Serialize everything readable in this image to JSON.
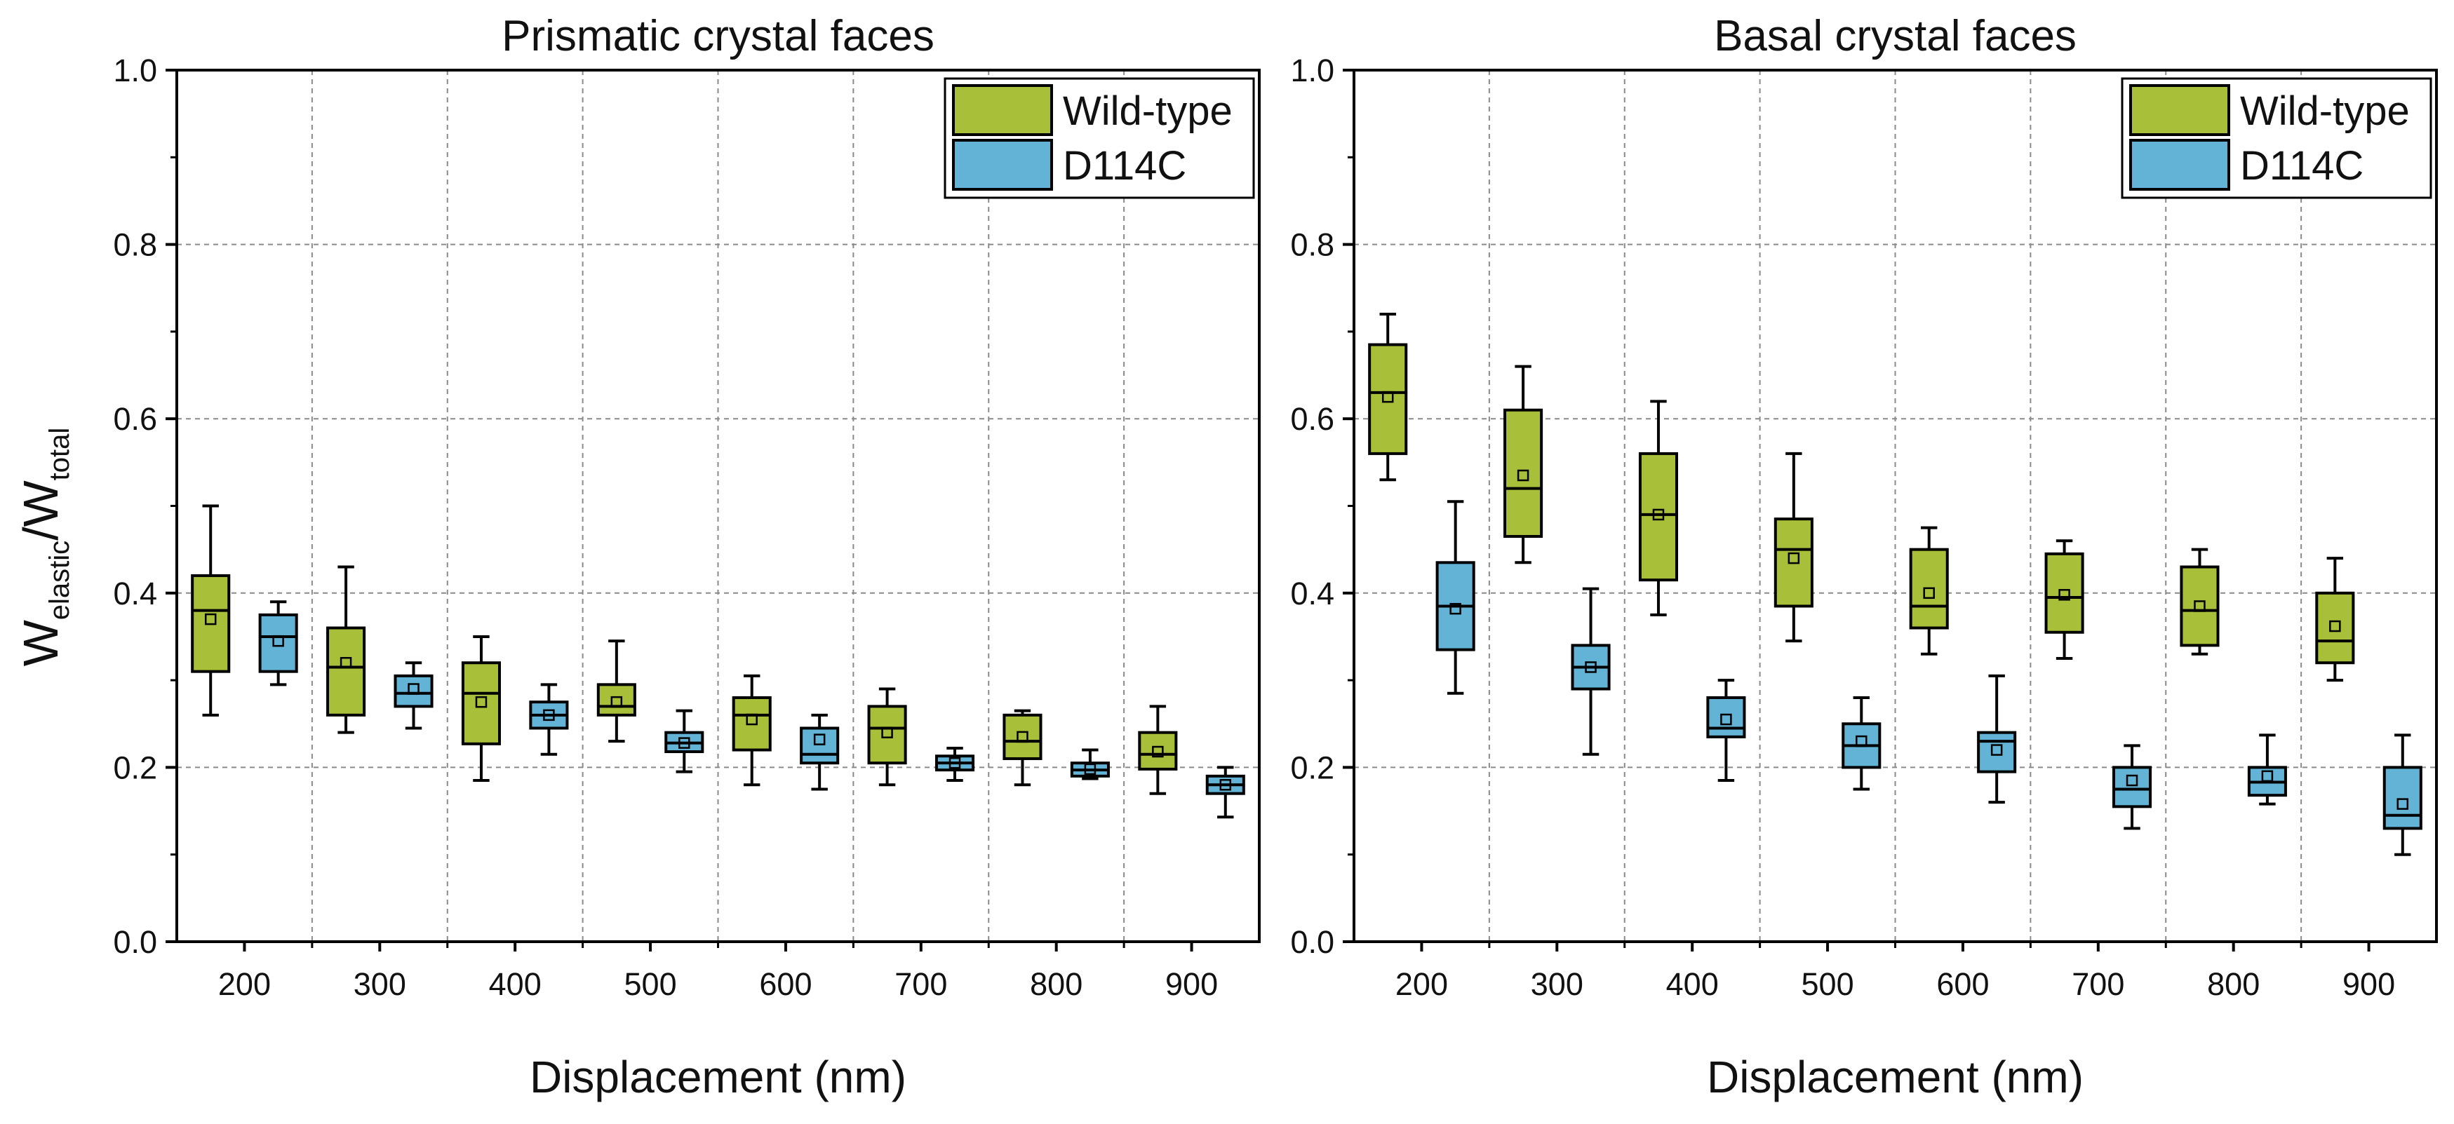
{
  "chart_data": [
    {
      "type": "box",
      "title": "Prismatic crystal faces",
      "xlabel": "Displacement (nm)",
      "ylabel": "W_elastic/W_total",
      "ylabel_parts": {
        "main": "W",
        "sub1": "elastic",
        "slash": "/W",
        "sub2": "total"
      },
      "ylim": [
        0.0,
        1.0
      ],
      "yticks": [
        "0.0",
        "0.2",
        "0.4",
        "0.6",
        "0.8",
        "1.0"
      ],
      "categories": [
        "200",
        "300",
        "400",
        "500",
        "600",
        "700",
        "800",
        "900"
      ],
      "grid": true,
      "legend_position": "top-right",
      "series": [
        {
          "name": "Wild-type",
          "color": "#a8bf3a",
          "boxes": [
            {
              "min": 0.26,
              "q1": 0.31,
              "median": 0.38,
              "q3": 0.42,
              "max": 0.5,
              "mean": 0.37
            },
            {
              "min": 0.24,
              "q1": 0.26,
              "median": 0.315,
              "q3": 0.36,
              "max": 0.43,
              "mean": 0.32
            },
            {
              "min": 0.185,
              "q1": 0.227,
              "median": 0.285,
              "q3": 0.32,
              "max": 0.35,
              "mean": 0.275
            },
            {
              "min": 0.23,
              "q1": 0.26,
              "median": 0.27,
              "q3": 0.295,
              "max": 0.345,
              "mean": 0.275
            },
            {
              "min": 0.18,
              "q1": 0.22,
              "median": 0.26,
              "q3": 0.28,
              "max": 0.305,
              "mean": 0.255
            },
            {
              "min": 0.18,
              "q1": 0.205,
              "median": 0.245,
              "q3": 0.27,
              "max": 0.29,
              "mean": 0.24
            },
            {
              "min": 0.18,
              "q1": 0.21,
              "median": 0.23,
              "q3": 0.26,
              "max": 0.265,
              "mean": 0.235
            },
            {
              "min": 0.17,
              "q1": 0.198,
              "median": 0.215,
              "q3": 0.24,
              "max": 0.27,
              "mean": 0.218
            }
          ]
        },
        {
          "name": "D114C",
          "color": "#62b3d6",
          "boxes": [
            {
              "min": 0.295,
              "q1": 0.31,
              "median": 0.35,
              "q3": 0.375,
              "max": 0.39,
              "mean": 0.345
            },
            {
              "min": 0.245,
              "q1": 0.27,
              "median": 0.285,
              "q3": 0.305,
              "max": 0.32,
              "mean": 0.29
            },
            {
              "min": 0.215,
              "q1": 0.245,
              "median": 0.26,
              "q3": 0.275,
              "max": 0.295,
              "mean": 0.26
            },
            {
              "min": 0.195,
              "q1": 0.218,
              "median": 0.228,
              "q3": 0.24,
              "max": 0.265,
              "mean": 0.228
            },
            {
              "min": 0.175,
              "q1": 0.205,
              "median": 0.215,
              "q3": 0.245,
              "max": 0.26,
              "mean": 0.232
            },
            {
              "min": 0.185,
              "q1": 0.197,
              "median": 0.205,
              "q3": 0.213,
              "max": 0.222,
              "mean": 0.205
            },
            {
              "min": 0.187,
              "q1": 0.19,
              "median": 0.197,
              "q3": 0.205,
              "max": 0.22,
              "mean": 0.198
            },
            {
              "min": 0.143,
              "q1": 0.17,
              "median": 0.18,
              "q3": 0.19,
              "max": 0.2,
              "mean": 0.18
            }
          ]
        }
      ]
    },
    {
      "type": "box",
      "title": "Basal crystal faces",
      "xlabel": "Displacement (nm)",
      "ylim": [
        0.0,
        1.0
      ],
      "yticks": [
        "0.0",
        "0.2",
        "0.4",
        "0.6",
        "0.8",
        "1.0"
      ],
      "categories": [
        "200",
        "300",
        "400",
        "500",
        "600",
        "700",
        "800",
        "900"
      ],
      "grid": true,
      "legend_position": "top-right",
      "series": [
        {
          "name": "Wild-type",
          "color": "#a8bf3a",
          "boxes": [
            {
              "min": 0.53,
              "q1": 0.56,
              "median": 0.63,
              "q3": 0.685,
              "max": 0.72,
              "mean": 0.625
            },
            {
              "min": 0.435,
              "q1": 0.465,
              "median": 0.52,
              "q3": 0.61,
              "max": 0.66,
              "mean": 0.535
            },
            {
              "min": 0.375,
              "q1": 0.415,
              "median": 0.49,
              "q3": 0.56,
              "max": 0.62,
              "mean": 0.49
            },
            {
              "min": 0.345,
              "q1": 0.385,
              "median": 0.45,
              "q3": 0.485,
              "max": 0.56,
              "mean": 0.44
            },
            {
              "min": 0.33,
              "q1": 0.36,
              "median": 0.385,
              "q3": 0.45,
              "max": 0.475,
              "mean": 0.4
            },
            {
              "min": 0.325,
              "q1": 0.355,
              "median": 0.395,
              "q3": 0.445,
              "max": 0.46,
              "mean": 0.398
            },
            {
              "min": 0.33,
              "q1": 0.34,
              "median": 0.38,
              "q3": 0.43,
              "max": 0.45,
              "mean": 0.385
            },
            {
              "min": 0.3,
              "q1": 0.32,
              "median": 0.345,
              "q3": 0.4,
              "max": 0.44,
              "mean": 0.362
            }
          ]
        },
        {
          "name": "D114C",
          "color": "#62b3d6",
          "boxes": [
            {
              "min": 0.285,
              "q1": 0.335,
              "median": 0.385,
              "q3": 0.435,
              "max": 0.505,
              "mean": 0.382
            },
            {
              "min": 0.215,
              "q1": 0.29,
              "median": 0.315,
              "q3": 0.34,
              "max": 0.405,
              "mean": 0.315
            },
            {
              "min": 0.185,
              "q1": 0.235,
              "median": 0.245,
              "q3": 0.28,
              "max": 0.3,
              "mean": 0.255
            },
            {
              "min": 0.175,
              "q1": 0.2,
              "median": 0.225,
              "q3": 0.25,
              "max": 0.28,
              "mean": 0.23
            },
            {
              "min": 0.16,
              "q1": 0.195,
              "median": 0.23,
              "q3": 0.24,
              "max": 0.305,
              "mean": 0.22
            },
            {
              "min": 0.13,
              "q1": 0.155,
              "median": 0.175,
              "q3": 0.2,
              "max": 0.225,
              "mean": 0.185
            },
            {
              "min": 0.158,
              "q1": 0.168,
              "median": 0.183,
              "q3": 0.2,
              "max": 0.237,
              "mean": 0.19
            },
            {
              "min": 0.1,
              "q1": 0.13,
              "median": 0.145,
              "q3": 0.2,
              "max": 0.237,
              "mean": 0.158
            }
          ]
        }
      ]
    }
  ]
}
